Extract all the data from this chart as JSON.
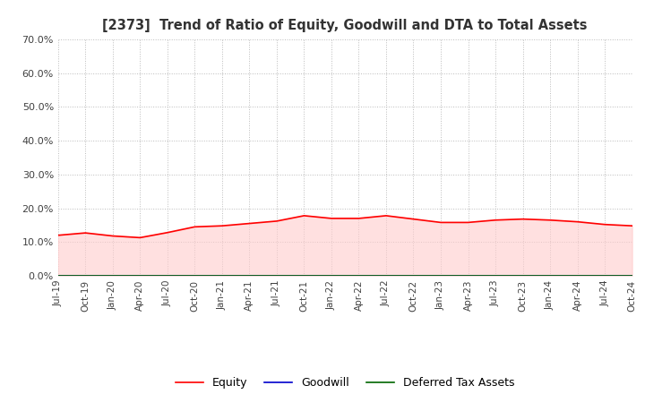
{
  "title": "[2373]  Trend of Ratio of Equity, Goodwill and DTA to Total Assets",
  "ylim": [
    0.0,
    0.7
  ],
  "yticks": [
    0.0,
    0.1,
    0.2,
    0.3,
    0.4,
    0.5,
    0.6,
    0.7
  ],
  "ytick_labels": [
    "0.0%",
    "10.0%",
    "20.0%",
    "30.0%",
    "40.0%",
    "50.0%",
    "60.0%",
    "70.0%"
  ],
  "x_labels": [
    "Jul-19",
    "Oct-19",
    "Jan-20",
    "Apr-20",
    "Jul-20",
    "Oct-20",
    "Jan-21",
    "Apr-21",
    "Jul-21",
    "Oct-21",
    "Jan-22",
    "Apr-22",
    "Jul-22",
    "Oct-22",
    "Jan-23",
    "Apr-23",
    "Jul-23",
    "Oct-23",
    "Jan-24",
    "Apr-24",
    "Jul-24",
    "Oct-24"
  ],
  "equity": [
    0.12,
    0.127,
    0.118,
    0.113,
    0.128,
    0.145,
    0.148,
    0.155,
    0.162,
    0.178,
    0.17,
    0.17,
    0.178,
    0.168,
    0.158,
    0.158,
    0.165,
    0.168,
    0.165,
    0.16,
    0.152,
    0.148
  ],
  "goodwill": [
    0.0002,
    0.0002,
    0.0002,
    0.0002,
    0.0002,
    0.0002,
    0.0002,
    0.0002,
    0.0002,
    0.0002,
    0.0002,
    0.0002,
    0.0002,
    0.0002,
    0.0002,
    0.0002,
    0.0002,
    0.0002,
    0.0002,
    0.0002,
    0.0002,
    0.0002
  ],
  "dta": [
    0.0004,
    0.0004,
    0.0004,
    0.0004,
    0.0004,
    0.0004,
    0.0004,
    0.0004,
    0.0004,
    0.0004,
    0.0004,
    0.0004,
    0.0004,
    0.0004,
    0.0004,
    0.0004,
    0.0004,
    0.0004,
    0.0004,
    0.0004,
    0.0004,
    0.0004
  ],
  "equity_color": "#FF0000",
  "goodwill_color": "#0000CC",
  "dta_color": "#006600",
  "fill_equity_color": "#FFCCCC",
  "bg_color": "#FFFFFF",
  "grid_color": "#BBBBBB",
  "title_color": "#333333",
  "legend_labels": [
    "Equity",
    "Goodwill",
    "Deferred Tax Assets"
  ]
}
